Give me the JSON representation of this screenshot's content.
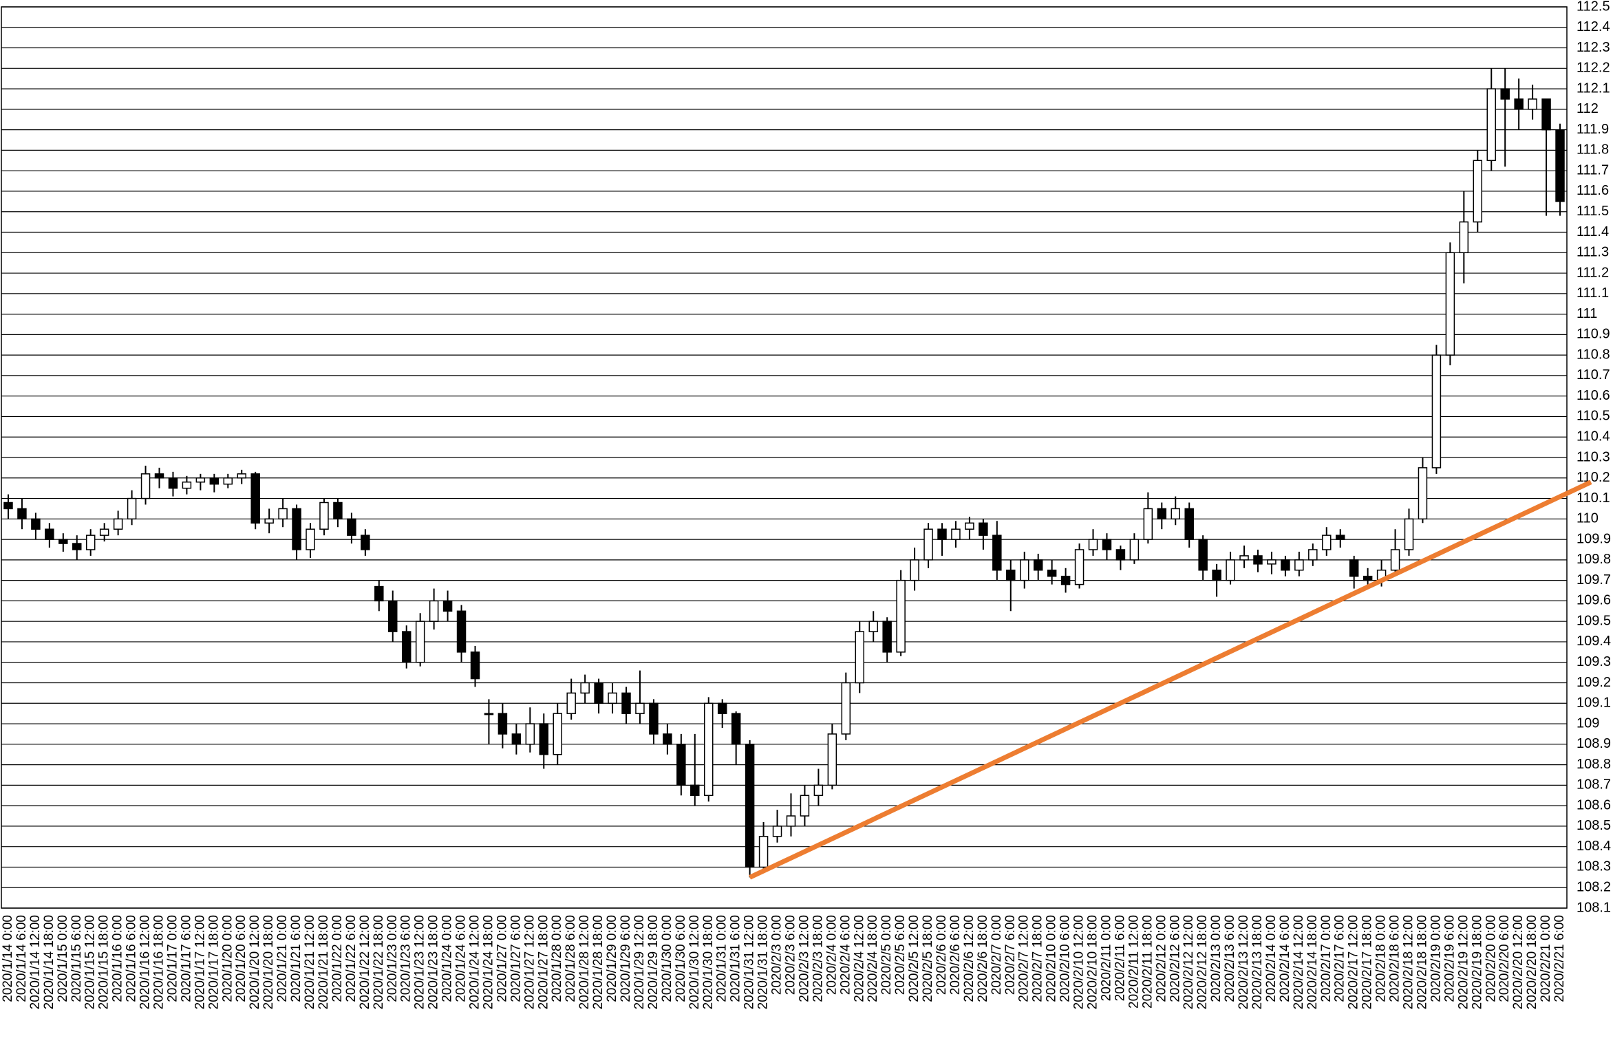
{
  "chart_data": {
    "type": "candlestick",
    "categories": [
      "2020/1/14 0:00",
      "2020/1/14 6:00",
      "2020/1/14 12:00",
      "2020/1/14 18:00",
      "2020/1/15 0:00",
      "2020/1/15 6:00",
      "2020/1/15 12:00",
      "2020/1/15 18:00",
      "2020/1/16 0:00",
      "2020/1/16 6:00",
      "2020/1/16 12:00",
      "2020/1/16 18:00",
      "2020/1/17 0:00",
      "2020/1/17 6:00",
      "2020/1/17 12:00",
      "2020/1/17 18:00",
      "2020/1/20 0:00",
      "2020/1/20 6:00",
      "2020/1/20 12:00",
      "2020/1/20 18:00",
      "2020/1/21 0:00",
      "2020/1/21 6:00",
      "2020/1/21 12:00",
      "2020/1/21 18:00",
      "2020/1/22 0:00",
      "2020/1/22 6:00",
      "2020/1/22 12:00",
      "2020/1/22 18:00",
      "2020/1/23 0:00",
      "2020/1/23 6:00",
      "2020/1/23 12:00",
      "2020/1/23 18:00",
      "2020/1/24 0:00",
      "2020/1/24 6:00",
      "2020/1/24 12:00",
      "2020/1/24 18:00",
      "2020/1/27 0:00",
      "2020/1/27 6:00",
      "2020/1/27 12:00",
      "2020/1/27 18:00",
      "2020/1/28 0:00",
      "2020/1/28 6:00",
      "2020/1/28 12:00",
      "2020/1/28 18:00",
      "2020/1/29 0:00",
      "2020/1/29 6:00",
      "2020/1/29 12:00",
      "2020/1/29 18:00",
      "2020/1/30 0:00",
      "2020/1/30 6:00",
      "2020/1/30 12:00",
      "2020/1/30 18:00",
      "2020/1/31 0:00",
      "2020/1/31 6:00",
      "2020/1/31 12:00",
      "2020/1/31 18:00",
      "2020/2/3 0:00",
      "2020/2/3 6:00",
      "2020/2/3 12:00",
      "2020/2/3 18:00",
      "2020/2/4 0:00",
      "2020/2/4 6:00",
      "2020/2/4 12:00",
      "2020/2/4 18:00",
      "2020/2/5 0:00",
      "2020/2/5 6:00",
      "2020/2/5 12:00",
      "2020/2/5 18:00",
      "2020/2/6 0:00",
      "2020/2/6 6:00",
      "2020/2/6 12:00",
      "2020/2/6 18:00",
      "2020/2/7 0:00",
      "2020/2/7 6:00",
      "2020/2/7 12:00",
      "2020/2/7 18:00",
      "2020/2/10 0:00",
      "2020/2/10 6:00",
      "2020/2/10 12:00",
      "2020/2/10 18:00",
      "2020/2/11 0:00",
      "2020/2/11 6:00",
      "2020/2/11 12:00",
      "2020/2/11 18:00",
      "2020/2/12 0:00",
      "2020/2/12 6:00",
      "2020/2/12 12:00",
      "2020/2/12 18:00",
      "2020/2/13 0:00",
      "2020/2/13 6:00",
      "2020/2/13 12:00",
      "2020/2/13 18:00",
      "2020/2/14 0:00",
      "2020/2/14 6:00",
      "2020/2/14 12:00",
      "2020/2/14 18:00",
      "2020/2/17 0:00",
      "2020/2/17 6:00",
      "2020/2/17 12:00",
      "2020/2/17 18:00",
      "2020/2/18 0:00",
      "2020/2/18 6:00",
      "2020/2/18 12:00",
      "2020/2/18 18:00",
      "2020/2/19 0:00",
      "2020/2/19 6:00",
      "2020/2/19 12:00",
      "2020/2/19 18:00",
      "2020/2/20 0:00",
      "2020/2/20 6:00",
      "2020/2/20 12:00",
      "2020/2/20 18:00",
      "2020/2/21 0:00",
      "2020/2/21 6:00"
    ],
    "open": [
      110.08,
      110.05,
      110.0,
      109.95,
      109.9,
      109.88,
      109.85,
      109.92,
      109.95,
      110.0,
      110.1,
      110.22,
      110.2,
      110.15,
      110.18,
      110.2,
      110.17,
      110.2,
      110.22,
      109.98,
      110.0,
      110.05,
      109.85,
      109.95,
      110.08,
      110.0,
      109.92,
      109.67,
      109.6,
      109.45,
      109.3,
      109.5,
      109.6,
      109.55,
      109.35,
      109.05,
      109.05,
      108.95,
      108.9,
      109.0,
      108.85,
      109.05,
      109.15,
      109.2,
      109.1,
      109.15,
      109.05,
      109.1,
      108.95,
      108.9,
      108.7,
      108.65,
      109.1,
      109.05,
      108.9,
      108.3,
      108.45,
      108.5,
      108.55,
      108.65,
      108.7,
      108.95,
      109.2,
      109.45,
      109.5,
      109.35,
      109.7,
      109.8,
      109.95,
      109.9,
      109.95,
      109.98,
      109.92,
      109.75,
      109.7,
      109.8,
      109.75,
      109.72,
      109.68,
      109.85,
      109.9,
      109.85,
      109.8,
      109.9,
      110.05,
      110.0,
      110.05,
      109.9,
      109.75,
      109.7,
      109.8,
      109.82,
      109.78,
      109.8,
      109.75,
      109.8,
      109.85,
      109.92,
      109.8,
      109.72,
      109.7,
      109.75,
      109.85,
      110.0,
      110.25,
      110.8,
      111.3,
      111.45,
      111.75,
      112.1,
      112.05,
      112.0,
      112.05,
      111.9
    ],
    "high": [
      110.12,
      110.1,
      110.03,
      109.98,
      109.93,
      109.92,
      109.95,
      109.98,
      110.04,
      110.14,
      110.26,
      110.25,
      110.23,
      110.21,
      110.22,
      110.22,
      110.22,
      110.24,
      110.23,
      110.05,
      110.1,
      110.07,
      109.98,
      110.1,
      110.1,
      110.03,
      109.95,
      109.7,
      109.65,
      109.48,
      109.54,
      109.66,
      109.65,
      109.58,
      109.38,
      109.12,
      109.1,
      109.0,
      109.08,
      109.05,
      109.1,
      109.22,
      109.24,
      109.22,
      109.2,
      109.18,
      109.26,
      109.12,
      109.0,
      108.95,
      108.95,
      109.13,
      109.12,
      109.06,
      108.92,
      108.52,
      108.58,
      108.66,
      108.7,
      108.78,
      109.0,
      109.25,
      109.5,
      109.55,
      109.52,
      109.75,
      109.86,
      109.98,
      109.98,
      109.99,
      110.01,
      110.0,
      109.99,
      109.8,
      109.84,
      109.83,
      109.8,
      109.76,
      109.88,
      109.95,
      109.93,
      109.87,
      109.93,
      110.13,
      110.08,
      110.11,
      110.08,
      109.92,
      109.78,
      109.84,
      109.87,
      109.85,
      109.84,
      109.82,
      109.84,
      109.88,
      109.96,
      109.95,
      109.82,
      109.76,
      109.8,
      109.95,
      110.05,
      110.3,
      110.85,
      111.35,
      111.6,
      111.8,
      112.2,
      112.2,
      112.15,
      112.12,
      112.03,
      111.93
    ],
    "low": [
      110.0,
      109.95,
      109.9,
      109.86,
      109.84,
      109.8,
      109.82,
      109.89,
      109.92,
      109.97,
      110.07,
      110.15,
      110.11,
      110.12,
      110.14,
      110.13,
      110.15,
      110.17,
      109.95,
      109.93,
      109.96,
      109.8,
      109.81,
      109.92,
      109.96,
      109.88,
      109.82,
      109.55,
      109.4,
      109.27,
      109.28,
      109.46,
      109.5,
      109.3,
      109.18,
      108.9,
      108.88,
      108.85,
      108.86,
      108.78,
      108.8,
      109.02,
      109.1,
      109.05,
      109.05,
      109.0,
      109.0,
      108.9,
      108.85,
      108.65,
      108.6,
      108.62,
      108.98,
      108.8,
      108.25,
      108.28,
      108.42,
      108.45,
      108.5,
      108.6,
      108.68,
      108.92,
      109.15,
      109.4,
      109.3,
      109.33,
      109.65,
      109.76,
      109.82,
      109.86,
      109.9,
      109.85,
      109.7,
      109.55,
      109.66,
      109.7,
      109.68,
      109.64,
      109.66,
      109.82,
      109.8,
      109.75,
      109.78,
      109.88,
      109.95,
      109.97,
      109.86,
      109.7,
      109.62,
      109.68,
      109.76,
      109.74,
      109.73,
      109.72,
      109.72,
      109.77,
      109.82,
      109.86,
      109.66,
      109.66,
      109.67,
      109.72,
      109.82,
      109.98,
      110.22,
      110.75,
      111.15,
      111.4,
      111.7,
      111.72,
      111.9,
      111.95,
      111.48,
      111.48
    ],
    "close": [
      110.05,
      110.0,
      109.95,
      109.9,
      109.88,
      109.85,
      109.92,
      109.95,
      110.0,
      110.1,
      110.22,
      110.2,
      110.15,
      110.18,
      110.2,
      110.17,
      110.2,
      110.22,
      109.98,
      110.0,
      110.05,
      109.85,
      109.95,
      110.08,
      110.0,
      109.92,
      109.85,
      109.6,
      109.45,
      109.3,
      109.5,
      109.6,
      109.55,
      109.35,
      109.22,
      109.05,
      108.95,
      108.9,
      109.0,
      108.85,
      109.05,
      109.15,
      109.2,
      109.1,
      109.15,
      109.05,
      109.1,
      108.95,
      108.9,
      108.7,
      108.65,
      109.1,
      109.05,
      108.9,
      108.3,
      108.45,
      108.5,
      108.55,
      108.65,
      108.7,
      108.95,
      109.2,
      109.45,
      109.5,
      109.35,
      109.7,
      109.8,
      109.95,
      109.9,
      109.95,
      109.98,
      109.92,
      109.75,
      109.7,
      109.8,
      109.75,
      109.72,
      109.68,
      109.85,
      109.9,
      109.85,
      109.8,
      109.9,
      110.05,
      110.0,
      110.05,
      109.9,
      109.75,
      109.7,
      109.8,
      109.82,
      109.78,
      109.8,
      109.75,
      109.8,
      109.85,
      109.92,
      109.9,
      109.72,
      109.7,
      109.75,
      109.85,
      110.0,
      110.25,
      110.8,
      111.3,
      111.45,
      111.75,
      112.1,
      112.05,
      112.0,
      112.05,
      111.9,
      111.55
    ],
    "color": "#000000",
    "trend_line": {
      "y": [
        108.25,
        110.18
      ],
      "color": "#ed7d31"
    },
    "ylim": [
      108.1,
      112.5
    ],
    "yticks": [
      108.1,
      108.2,
      108.3,
      108.4,
      108.5,
      108.6,
      108.7,
      108.8,
      108.9,
      109,
      109.1,
      109.2,
      109.3,
      109.4,
      109.5,
      109.6,
      109.7,
      109.8,
      109.9,
      110,
      110.1,
      110.2,
      110.3,
      110.4,
      110.5,
      110.6,
      110.7,
      110.8,
      110.9,
      111,
      111.1,
      111.2,
      111.3,
      111.4,
      111.5,
      111.6,
      111.7,
      111.8,
      111.9,
      112,
      112.1,
      112.2,
      112.3,
      112.4,
      112.5
    ],
    "grid": true
  }
}
